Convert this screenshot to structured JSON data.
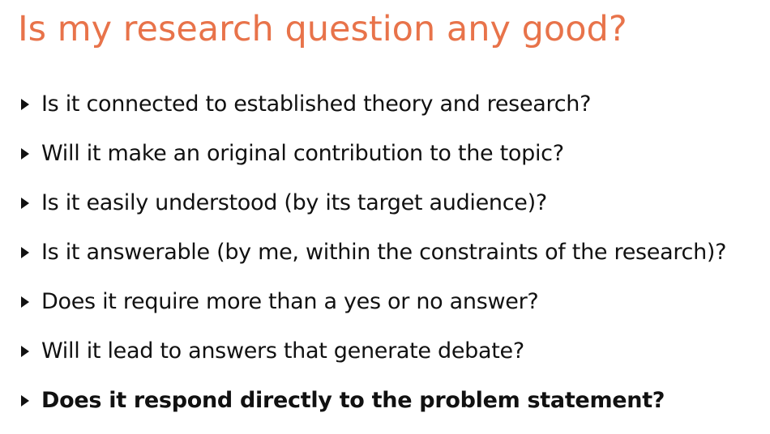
{
  "slide": {
    "title": "Is my research question any good?",
    "accent_color": "#e8734a",
    "bullet_icon": "triangle-right-icon",
    "bullets": [
      {
        "text": "Is it connected to established theory and research?",
        "bold": false
      },
      {
        "text": "Will it make an original contribution to the topic?",
        "bold": false
      },
      {
        "text": "Is it easily understood (by its target audience)?",
        "bold": false
      },
      {
        "text": "Is it answerable (by me, within the constraints of the research)?",
        "bold": false
      },
      {
        "text": "Does it require more than a yes or no answer?",
        "bold": false
      },
      {
        "text": "Will it lead to answers that generate debate?",
        "bold": false
      },
      {
        "text": "Does it respond directly to the problem statement?",
        "bold": true
      }
    ]
  }
}
